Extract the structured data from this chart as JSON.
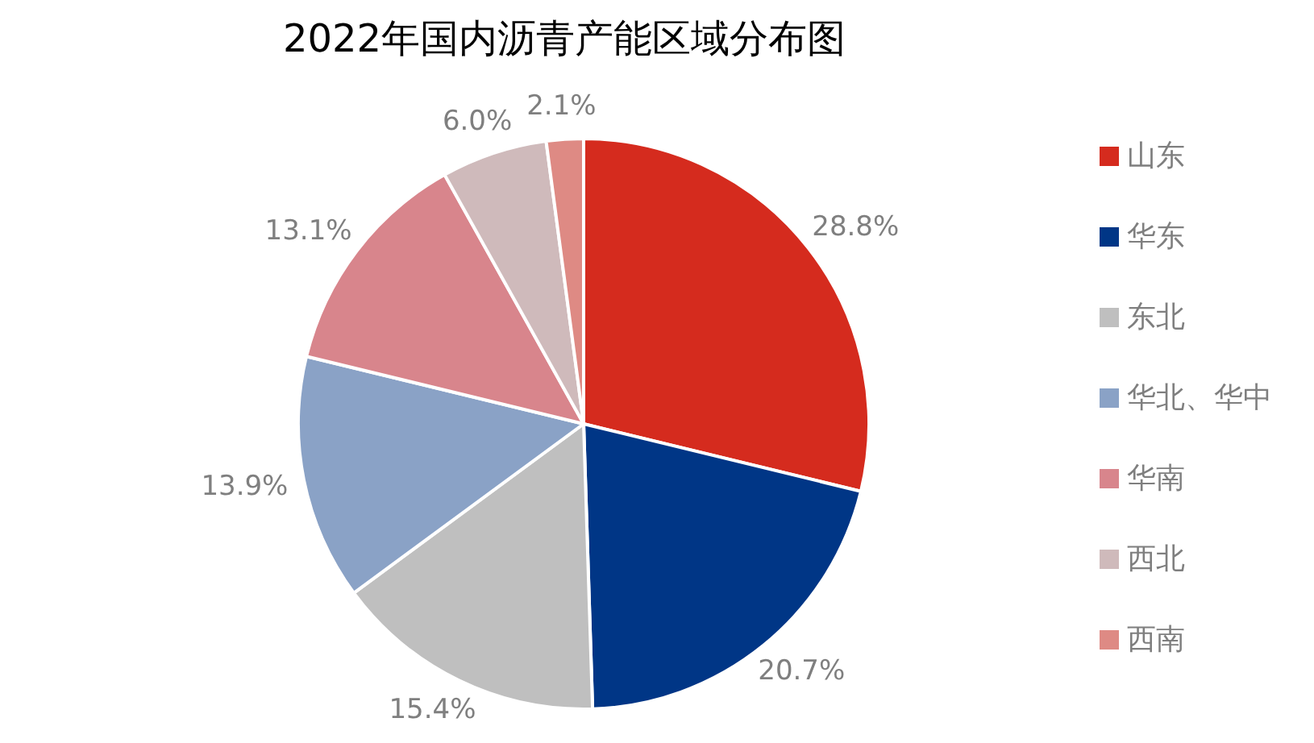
{
  "chart_data": {
    "type": "pie",
    "title": "2022年国内沥青产能区域分布图",
    "categories": [
      "山东",
      "华东",
      "东北",
      "华北、华中",
      "华南",
      "西北",
      "西南"
    ],
    "values": [
      28.8,
      20.7,
      15.4,
      13.9,
      13.1,
      6.0,
      2.1
    ],
    "value_labels": [
      "28.8%",
      "20.7%",
      "15.4%",
      "13.9%",
      "13.1%",
      "6.0%",
      "2.1%"
    ],
    "colors": [
      "#d52b1e",
      "#003686",
      "#bfbfbf",
      "#8aa2c6",
      "#d8858c",
      "#cfbabb",
      "#de8a84"
    ],
    "legend": "right"
  }
}
